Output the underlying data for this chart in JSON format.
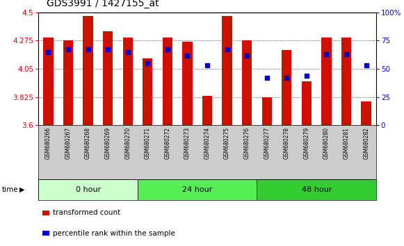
{
  "title": "GDS3991 / 1427155_at",
  "samples": [
    "GSM680266",
    "GSM680267",
    "GSM680268",
    "GSM680269",
    "GSM680270",
    "GSM680271",
    "GSM680272",
    "GSM680273",
    "GSM680274",
    "GSM680275",
    "GSM680276",
    "GSM680277",
    "GSM680278",
    "GSM680279",
    "GSM680280",
    "GSM680281",
    "GSM680282"
  ],
  "transformed_count": [
    4.3,
    4.275,
    4.47,
    4.35,
    4.3,
    4.135,
    4.3,
    4.265,
    3.835,
    4.47,
    4.275,
    3.825,
    4.2,
    3.95,
    4.3,
    4.3,
    3.79
  ],
  "percentile_rank": [
    65,
    67,
    67,
    67,
    65,
    55,
    67,
    62,
    53,
    67,
    62,
    42,
    42,
    44,
    63,
    63,
    53
  ],
  "y_min": 3.6,
  "y_max": 4.5,
  "y_left_ticks": [
    3.6,
    3.825,
    4.05,
    4.275,
    4.5
  ],
  "y_right_ticks": [
    0,
    25,
    50,
    75,
    100
  ],
  "groups": [
    {
      "label": "0 hour",
      "start": 0,
      "end": 5,
      "color": "#ccffcc"
    },
    {
      "label": "24 hour",
      "start": 5,
      "end": 11,
      "color": "#55ee55"
    },
    {
      "label": "48 hour",
      "start": 11,
      "end": 17,
      "color": "#33cc33"
    }
  ],
  "bar_color": "#cc1100",
  "dot_color": "#0000cc",
  "plot_bg": "#ffffff",
  "label_area_bg": "#cccccc",
  "bar_width": 0.5,
  "dot_size": 18,
  "title_fontsize": 10,
  "tick_fontsize": 7.5,
  "label_fontsize": 5.5,
  "group_fontsize": 8
}
